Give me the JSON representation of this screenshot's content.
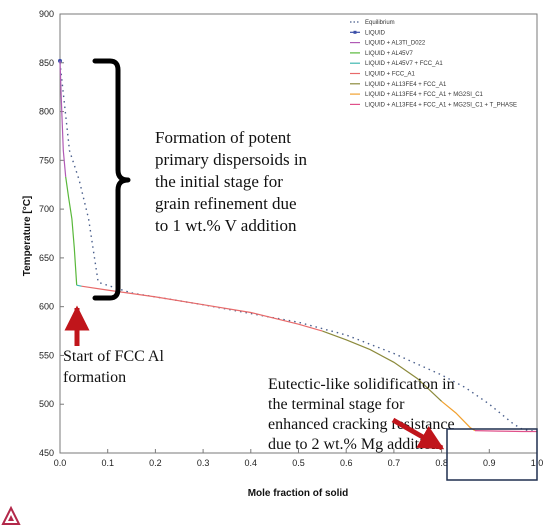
{
  "chart_data": {
    "type": "line",
    "xlabel": "Mole fraction of solid",
    "ylabel": "Temperature [°C]",
    "xlim": [
      0.0,
      1.0
    ],
    "ylim": [
      450,
      900
    ],
    "xticks": [
      "0.0",
      "0.1",
      "0.2",
      "0.3",
      "0.4",
      "0.5",
      "0.6",
      "0.7",
      "0.8",
      "0.9",
      "1.0"
    ],
    "yticks": [
      "450",
      "500",
      "550",
      "600",
      "650",
      "700",
      "750",
      "800",
      "850",
      "900"
    ],
    "legend_position": "top-right",
    "series": [
      {
        "name": "Equilibrium",
        "color": "#4a5f8c",
        "style": "dotted",
        "x": [
          0.0,
          0.02,
          0.04,
          0.06,
          0.08,
          0.15,
          0.3,
          0.5,
          0.6,
          0.7,
          0.8,
          0.85,
          0.9,
          0.93,
          0.95,
          0.97,
          1.0
        ],
        "y": [
          850,
          760,
          730,
          690,
          625,
          614,
          602,
          584,
          571,
          552,
          530,
          517,
          500,
          488,
          480,
          474,
          472
        ]
      },
      {
        "name": "LIQUID",
        "color": "#3b4fa8",
        "style": "solid",
        "x": [
          0.0
        ],
        "y": [
          852
        ]
      },
      {
        "name": "LIQUID + AL3TI_D022",
        "color": "#b05ab5",
        "style": "solid",
        "x": [
          0.0,
          0.003,
          0.007,
          0.012
        ],
        "y": [
          852,
          810,
          760,
          733
        ]
      },
      {
        "name": "LIQUID + AL45V7",
        "color": "#59b83a",
        "style": "solid",
        "x": [
          0.012,
          0.018,
          0.025,
          0.03,
          0.035
        ],
        "y": [
          733,
          712,
          690,
          660,
          622
        ]
      },
      {
        "name": "LIQUID + AL45V7 + FCC_A1",
        "color": "#3fb8b0",
        "style": "solid",
        "x": [
          0.035,
          0.045
        ],
        "y": [
          622,
          621
        ]
      },
      {
        "name": "LIQUID + FCC_A1",
        "color": "#e86a6a",
        "style": "solid",
        "x": [
          0.045,
          0.1,
          0.2,
          0.3,
          0.4,
          0.5,
          0.55
        ],
        "y": [
          621,
          617,
          610,
          602,
          594,
          582,
          575
        ]
      },
      {
        "name": "LIQUID + AL13FE4 + FCC_A1",
        "color": "#8c8a3c",
        "style": "solid",
        "x": [
          0.55,
          0.6,
          0.65,
          0.7,
          0.75,
          0.8
        ],
        "y": [
          575,
          566,
          556,
          543,
          526,
          503
        ]
      },
      {
        "name": "LIQUID + AL13FE4 + FCC_A1 + MG2SI_C1",
        "color": "#f2a12f",
        "style": "solid",
        "x": [
          0.8,
          0.83,
          0.86,
          0.87
        ],
        "y": [
          503,
          491,
          476,
          473
        ]
      },
      {
        "name": "LIQUID + AL13FE4 + FCC_A1 + MG2SI_C1 + T_PHASE",
        "color": "#e0508a",
        "style": "solid",
        "x": [
          0.87,
          0.92,
          0.97,
          1.0
        ],
        "y": [
          473,
          472.5,
          472,
          472
        ]
      }
    ]
  },
  "annotations": {
    "brace_text": [
      "Formation of potent",
      "primary dispersoids in",
      "the initial stage for",
      "grain refinement due",
      "to 1 wt.% V addition"
    ],
    "start_text": [
      "Start of FCC Al",
      "formation"
    ],
    "eutectic_text": [
      "Eutectic-like solidification in",
      "the terminal stage for",
      "enhanced cracking resistance",
      "due to 2 wt.% Mg addition"
    ]
  },
  "colors": {
    "arrow": "#c0151b",
    "highlight_box": "#1f2e4f",
    "plot_border": "#7a7a7a",
    "logo": "#b3284a"
  },
  "icons": {
    "logo": "triangle-logo-icon"
  }
}
